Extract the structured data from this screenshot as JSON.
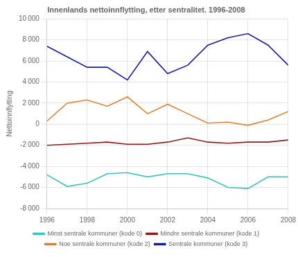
{
  "chart_data": {
    "type": "line",
    "title": "Innenlands nettoinnflytting, etter sentralitet. 1996-2008",
    "ylabel": "Nettoinnflytting",
    "x": [
      1996,
      1997,
      1998,
      1999,
      2000,
      2001,
      2002,
      2003,
      2004,
      2005,
      2006,
      2007,
      2008
    ],
    "series": [
      {
        "name": "Minst sentrale kommuner (kode 0)",
        "color": "#3dbfbf",
        "values": [
          -4800,
          -5900,
          -5600,
          -4700,
          -4600,
          -5000,
          -4700,
          -4700,
          -5100,
          -6000,
          -6100,
          -5000,
          -5000
        ]
      },
      {
        "name": "Mindre sentrale kommuner (kode 1)",
        "color": "#8b1a1a",
        "values": [
          -2000,
          -1900,
          -1800,
          -1700,
          -1900,
          -1900,
          -1700,
          -1300,
          -1700,
          -1800,
          -1700,
          -1700,
          -1500
        ]
      },
      {
        "name": "Noe sentrale kommuner (kode 2)",
        "color": "#e08030",
        "values": [
          300,
          2000,
          2300,
          1700,
          2600,
          1000,
          1900,
          1000,
          100,
          200,
          -100,
          400,
          1200
        ]
      },
      {
        "name": "Sentrale kommuner (kode 3)",
        "color": "#1a1aaa",
        "values": [
          7400,
          6400,
          5400,
          5400,
          4200,
          6900,
          4800,
          5600,
          7500,
          8200,
          8600,
          7500,
          5600
        ]
      }
    ],
    "xlim": [
      1996,
      2008
    ],
    "xticks": [
      1996,
      1998,
      2000,
      2002,
      2004,
      2006,
      2008
    ],
    "ylim": [
      -8000,
      10000
    ],
    "yticks": [
      {
        "value": -8000,
        "label": "-8 000"
      },
      {
        "value": -6000,
        "label": "-6 000"
      },
      {
        "value": -4000,
        "label": "-4 000"
      },
      {
        "value": -2000,
        "label": "-2 000"
      },
      0,
      {
        "value": 2000,
        "label": "2 000"
      },
      {
        "value": 4000,
        "label": "4 000"
      },
      {
        "value": 6000,
        "label": "6 000"
      },
      {
        "value": 8000,
        "label": "8 000"
      },
      {
        "value": 10000,
        "label": "10 000"
      }
    ],
    "grid": true,
    "legend": "bottom"
  }
}
